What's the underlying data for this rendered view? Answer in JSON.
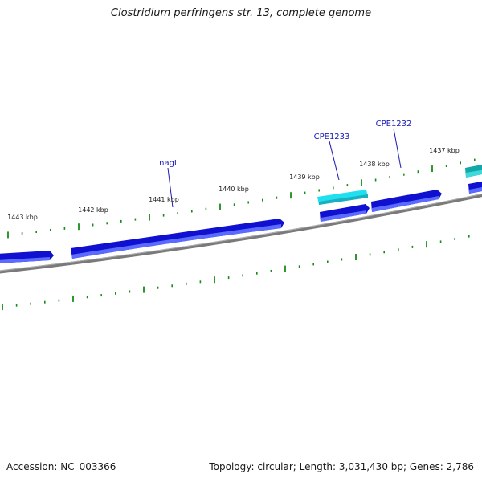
{
  "title": "Clostridium perfringens str. 13, complete genome",
  "footer": {
    "accession": "Accession: NC_003366",
    "summary": "Topology: circular; Length: 3,031,430 bp; Genes: 2,786"
  },
  "ruler_labels": [
    "1443 kbp",
    "1442 kbp",
    "1441 kbp",
    "1440 kbp",
    "1439 kbp",
    "1438 kbp",
    "1437 kbp"
  ],
  "gene_labels": [
    "nagI",
    "CPE1233",
    "CPE1232"
  ],
  "colors": {
    "backbone": "#808080",
    "gene_blue": "#1010d0",
    "gene_cyan": "#20e0f0",
    "gene_teal": "#10a8a8",
    "ticks": "#1a8a1a",
    "label": "#1a1ab8"
  }
}
